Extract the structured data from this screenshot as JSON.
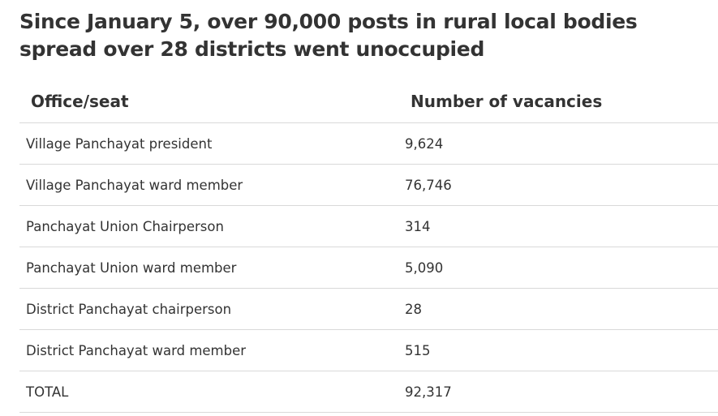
{
  "title": "Since January 5, over 90,000 posts in rural local bodies spread over 28 districts went unoccupied",
  "chart_data": {
    "type": "table",
    "columns": [
      "Office/seat",
      "Number of vacancies"
    ],
    "rows": [
      {
        "office": "Village Panchayat president",
        "vacancies": "9,624"
      },
      {
        "office": "Village Panchayat ward member",
        "vacancies": "76,746"
      },
      {
        "office": "Panchayat Union Chairperson",
        "vacancies": "314"
      },
      {
        "office": "Panchayat Union ward member",
        "vacancies": "5,090"
      },
      {
        "office": "District Panchayat chairperson",
        "vacancies": "28"
      },
      {
        "office": "District Panchayat ward member",
        "vacancies": "515"
      },
      {
        "office": "TOTAL",
        "vacancies": "92,317"
      }
    ]
  }
}
